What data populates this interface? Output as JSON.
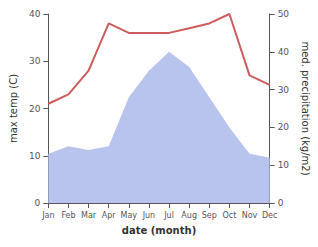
{
  "chart_data": {
    "type": "line",
    "categories": [
      "Jan",
      "Feb",
      "Mar",
      "Apr",
      "May",
      "Jun",
      "Jul",
      "Aug",
      "Sep",
      "Oct",
      "Nov",
      "Dec"
    ],
    "series": [
      {
        "type": "area",
        "axis": "y2",
        "color": "#b8c4ee",
        "values": [
          13,
          15,
          14,
          15,
          28,
          35,
          40,
          36,
          28,
          20,
          13,
          12
        ]
      },
      {
        "type": "line",
        "color": "#cd5c5c",
        "values": [
          21,
          23,
          28,
          38,
          36,
          36,
          36,
          37,
          38,
          40,
          27,
          25
        ]
      }
    ],
    "xlabel": "date (month)",
    "ylabel": "max temp (C)",
    "y2label": "med. precipitation (kg/m2)",
    "ylim": [
      0,
      40
    ],
    "yticks": [
      0,
      10,
      20,
      30,
      40
    ],
    "y2lim": [
      0,
      50
    ],
    "y2ticks": [
      0,
      10,
      20,
      30,
      40,
      50
    ],
    "grid": false
  }
}
